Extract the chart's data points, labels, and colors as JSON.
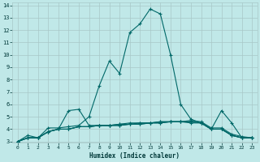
{
  "title": "",
  "xlabel": "Humidex (Indice chaleur)",
  "bg_color": "#c0e8e8",
  "line_color": "#006868",
  "grid_color": "#a8c8c8",
  "xlim": [
    0,
    23
  ],
  "ylim": [
    3,
    14
  ],
  "xticks": [
    0,
    1,
    2,
    3,
    4,
    5,
    6,
    7,
    8,
    9,
    10,
    11,
    12,
    13,
    14,
    15,
    16,
    17,
    18,
    19,
    20,
    21,
    22,
    23
  ],
  "yticks": [
    3,
    4,
    5,
    6,
    7,
    8,
    9,
    10,
    11,
    12,
    13,
    14
  ],
  "curves": [
    [
      3.0,
      3.5,
      3.3,
      4.1,
      4.1,
      4.2,
      4.3,
      5.0,
      7.5,
      9.5,
      8.5,
      11.8,
      12.5,
      13.7,
      13.3,
      10.0,
      6.0,
      4.8,
      4.5,
      4.0,
      5.5,
      4.5,
      3.3,
      3.3
    ],
    [
      3.0,
      3.3,
      3.3,
      3.8,
      4.0,
      5.5,
      5.6,
      4.3,
      4.3,
      4.3,
      4.4,
      4.4,
      4.5,
      4.5,
      4.6,
      4.6,
      4.6,
      4.5,
      4.5,
      4.0,
      4.0,
      3.5,
      3.3,
      3.3
    ],
    [
      3.0,
      3.3,
      3.3,
      3.8,
      4.0,
      4.0,
      4.2,
      4.2,
      4.3,
      4.3,
      4.3,
      4.4,
      4.4,
      4.5,
      4.5,
      4.6,
      4.6,
      4.6,
      4.5,
      4.0,
      4.0,
      3.5,
      3.3,
      3.3
    ],
    [
      3.0,
      3.3,
      3.3,
      3.8,
      4.0,
      4.0,
      4.2,
      4.2,
      4.3,
      4.3,
      4.3,
      4.4,
      4.4,
      4.5,
      4.5,
      4.6,
      4.6,
      4.6,
      4.5,
      4.0,
      4.0,
      3.5,
      3.3,
      3.3
    ],
    [
      3.0,
      3.3,
      3.3,
      3.8,
      4.0,
      4.0,
      4.2,
      4.2,
      4.3,
      4.3,
      4.4,
      4.5,
      4.5,
      4.5,
      4.6,
      4.6,
      4.6,
      4.7,
      4.6,
      4.1,
      4.1,
      3.6,
      3.4,
      3.3
    ]
  ]
}
